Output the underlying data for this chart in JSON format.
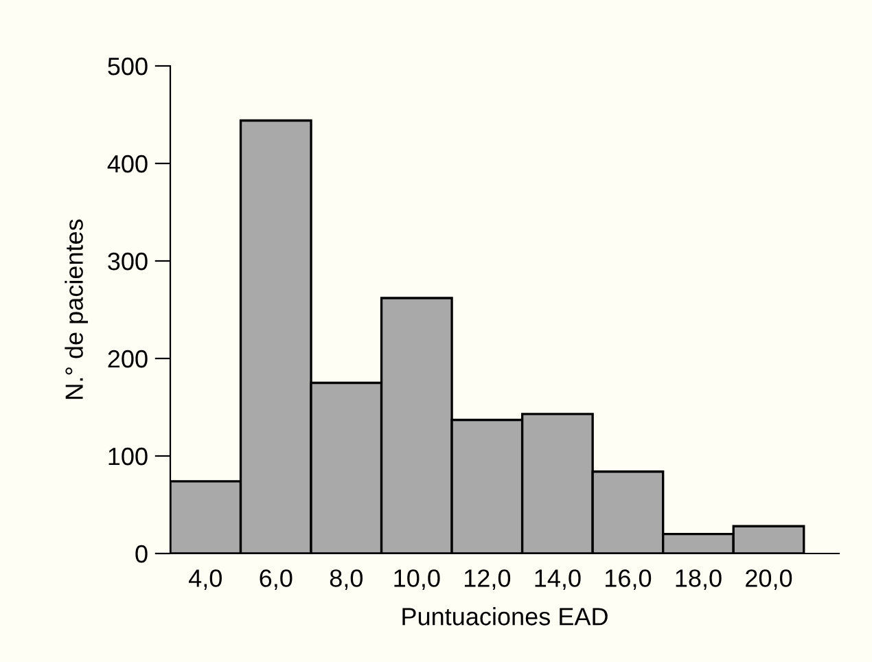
{
  "chart_data": {
    "type": "histogram",
    "xlabel": "Puntuaciones EAD",
    "ylabel": "N.° de pacientes",
    "bins": [
      3,
      5,
      7,
      9,
      11,
      13,
      15,
      17,
      19,
      21
    ],
    "values": [
      74,
      444,
      175,
      262,
      137,
      143,
      84,
      20,
      28
    ],
    "color": "#a9a9a9",
    "xlim": [
      3,
      22
    ],
    "ylim": [
      0,
      500
    ],
    "xticks": [
      {
        "value": 4,
        "label": "4,0"
      },
      {
        "value": 6,
        "label": "6,0"
      },
      {
        "value": 8,
        "label": "8,0"
      },
      {
        "value": 10,
        "label": "10,0"
      },
      {
        "value": 12,
        "label": "12,0"
      },
      {
        "value": 14,
        "label": "14,0"
      },
      {
        "value": 16,
        "label": "16,0"
      },
      {
        "value": 18,
        "label": "18,0"
      },
      {
        "value": 20,
        "label": "20,0"
      }
    ],
    "yticks": [
      0,
      100,
      200,
      300,
      400,
      500
    ],
    "grid": false,
    "legend": false
  }
}
